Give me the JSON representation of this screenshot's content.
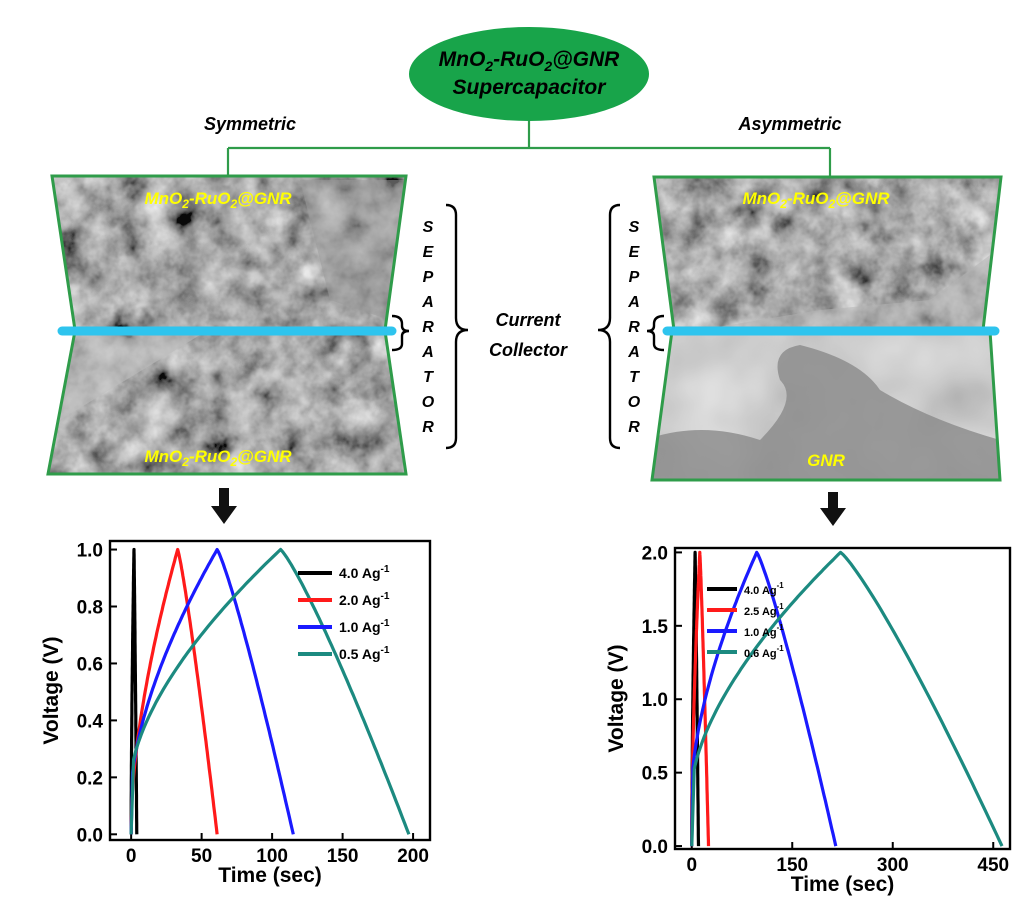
{
  "header": {
    "title_line1_pre": "MnO",
    "title_line1_sub1": "2",
    "title_line1_mid": "-RuO",
    "title_line1_sub2": "2",
    "title_line1_post": "@GNR",
    "title_line2": "Supercapacitor",
    "left_branch": "Symmetric",
    "right_branch": "Asymmetric"
  },
  "colors": {
    "green": "#2f9c4a",
    "ellipse_fill": "#18a44a",
    "collector": "#2ec4ee",
    "label_yellow": "#ffff00"
  },
  "devices": {
    "left": {
      "top_label": {
        "pre": "MnO",
        "s1": "2",
        "mid": "-RuO",
        "s2": "2",
        "post": "@GNR"
      },
      "bottom_label": {
        "pre": "MnO",
        "s1": "2",
        "mid": "-RuO",
        "s2": "2",
        "post": "@GNR"
      },
      "separator_letters": [
        "S",
        "E",
        "P",
        "A",
        "R",
        "A",
        "T",
        "O",
        "R"
      ]
    },
    "right": {
      "top_label": {
        "pre": "MnO",
        "s1": "2",
        "mid": "-RuO",
        "s2": "2",
        "post": "@GNR"
      },
      "bottom_label": "GNR",
      "separator_letters": [
        "S",
        "E",
        "P",
        "A",
        "R",
        "A",
        "T",
        "O",
        "R"
      ]
    },
    "collector_label_line1": "Current",
    "collector_label_line2": "Collector"
  },
  "chart_data": [
    {
      "type": "line",
      "xlabel": "Time (sec)",
      "ylabel": "Voltage (V)",
      "xlim": [
        -15,
        212
      ],
      "ylim": [
        -0.02,
        1.03
      ],
      "xticks": [
        "0",
        "50",
        "100",
        "150",
        "200"
      ],
      "xtick_values": [
        0,
        50,
        100,
        150,
        200
      ],
      "yticks": [
        "0.0",
        "0.2",
        "0.4",
        "0.6",
        "0.8",
        "1.0"
      ],
      "ytick_values": [
        0.0,
        0.2,
        0.4,
        0.6,
        0.8,
        1.0
      ],
      "legend_position": "top-right",
      "series": [
        {
          "name": "4.0 Ag",
          "unit_sup": "-1",
          "color": "#000000",
          "charge_end": 2,
          "peak": 1.0,
          "discharge_end": 4,
          "v0": 0.0
        },
        {
          "name": "2.0 Ag",
          "unit_sup": "-1",
          "color": "#ff1a1a",
          "charge_end": 33,
          "peak": 1.0,
          "discharge_end": 61,
          "v0": 0.05
        },
        {
          "name": "1.0 Ag",
          "unit_sup": "-1",
          "color": "#1a1aff",
          "charge_end": 61,
          "peak": 1.0,
          "discharge_end": 115,
          "v0": 0.15
        },
        {
          "name": "0.5 Ag",
          "unit_sup": "-1",
          "color": "#1c8a80",
          "charge_end": 106,
          "peak": 1.0,
          "discharge_end": 197,
          "v0": 0.2
        }
      ]
    },
    {
      "type": "line",
      "xlabel": "Time (sec)",
      "ylabel": "Voltage (V)",
      "xlim": [
        -25,
        475
      ],
      "ylim": [
        -0.02,
        2.03
      ],
      "xticks": [
        "0",
        "150",
        "300",
        "450"
      ],
      "xtick_values": [
        0,
        150,
        300,
        450
      ],
      "yticks": [
        "0.0",
        "0.5",
        "1.0",
        "1.5",
        "2.0"
      ],
      "ytick_values": [
        0.0,
        0.5,
        1.0,
        1.5,
        2.0
      ],
      "legend_position": "top-left",
      "series": [
        {
          "name": "4.0 Ag",
          "unit_sup": "-1",
          "color": "#000000",
          "charge_end": 5,
          "peak": 2.0,
          "discharge_end": 10,
          "v0": 0.0
        },
        {
          "name": "2.5 Ag",
          "unit_sup": "-1",
          "color": "#ff1a1a",
          "charge_end": 12,
          "peak": 2.0,
          "discharge_end": 25,
          "v0": 0.1
        },
        {
          "name": "1.0 Ag",
          "unit_sup": "-1",
          "color": "#1a1aff",
          "charge_end": 97,
          "peak": 2.0,
          "discharge_end": 215,
          "v0": 0.4
        },
        {
          "name": "0.6 Ag",
          "unit_sup": "-1",
          "color": "#1c8a80",
          "charge_end": 222,
          "peak": 2.0,
          "discharge_end": 463,
          "v0": 0.4
        }
      ]
    }
  ]
}
